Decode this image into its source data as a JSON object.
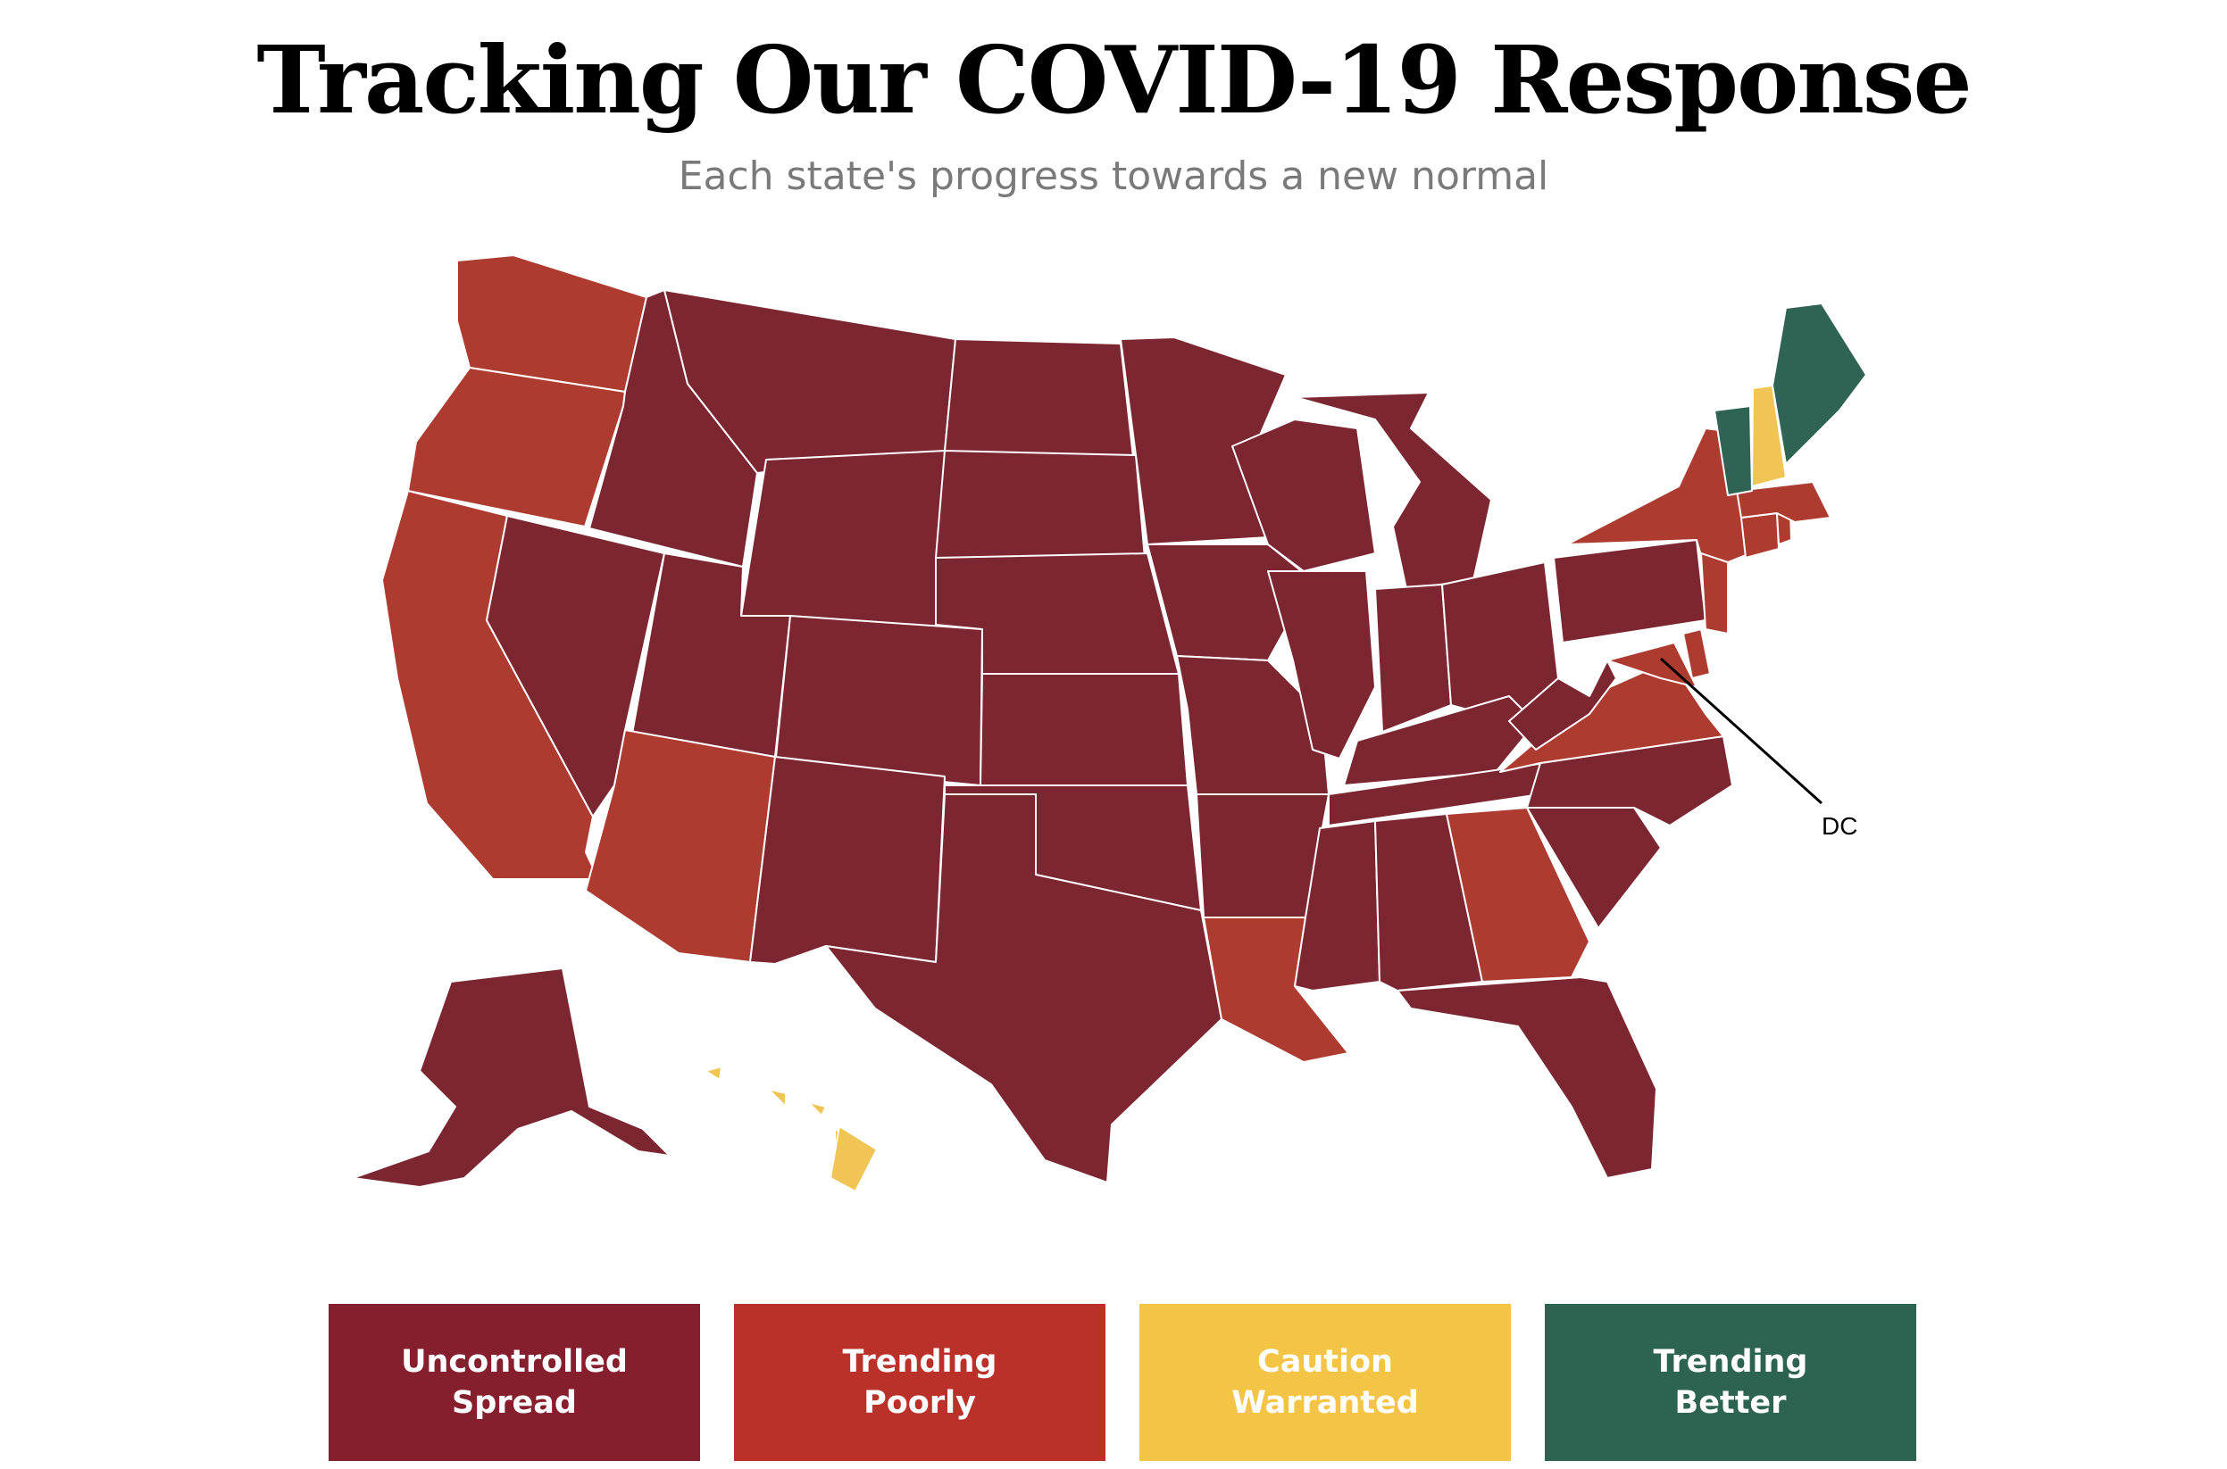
{
  "header": {
    "title": "Tracking Our COVID-19 Response",
    "subtitle": "Each state's progress towards a new normal"
  },
  "map": {
    "callout_label": "DC",
    "status_colors": {
      "uncontrolled": "#7b2631",
      "poorly": "#ad3b2f",
      "caution": "#f0c556",
      "better": "#2f6454"
    },
    "state_status": {
      "WA": "poorly",
      "OR": "poorly",
      "CA": "poorly",
      "AZ": "poorly",
      "LA": "poorly",
      "GA": "poorly",
      "NY": "poorly",
      "PA": "uncontrolled",
      "NJ": "poorly",
      "VA": "poorly",
      "MD": "poorly",
      "DE": "poorly",
      "MA": "poorly",
      "CT": "poorly",
      "RI": "poorly",
      "NH": "caution",
      "HI": "caution",
      "VT": "better",
      "ME": "better",
      "default": "uncontrolled"
    }
  },
  "legend": {
    "items": [
      {
        "line1": "Uncontrolled",
        "line2": "Spread",
        "color": "#851f2e"
      },
      {
        "line1": "Trending",
        "line2": "Poorly",
        "color": "#b93128"
      },
      {
        "line1": "Caution",
        "line2": "Warranted",
        "color": "#f3c445"
      },
      {
        "line1": "Trending",
        "line2": "Better",
        "color": "#2c6451"
      }
    ]
  }
}
